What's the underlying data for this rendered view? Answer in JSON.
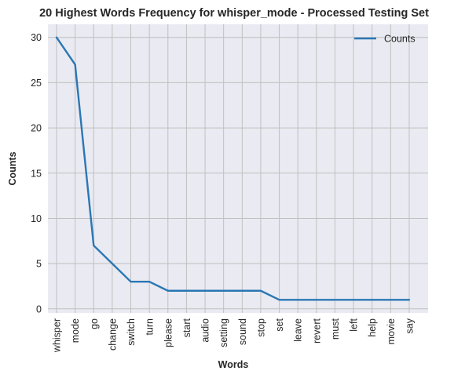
{
  "chart_data": {
    "type": "line",
    "title": "20 Highest Words Frequency for whisper_mode - Processed Testing Set",
    "xlabel": "Words",
    "ylabel": "Counts",
    "categories": [
      "whisper",
      "mode",
      "go",
      "change",
      "switch",
      "turn",
      "please",
      "start",
      "audio",
      "setting",
      "sound",
      "stop",
      "set",
      "leave",
      "revert",
      "must",
      "left",
      "help",
      "movie",
      "say"
    ],
    "series": [
      {
        "name": "Counts",
        "values": [
          30,
          27,
          7,
          5,
          3,
          3,
          2,
          2,
          2,
          2,
          2,
          2,
          1,
          1,
          1,
          1,
          1,
          1,
          1,
          1
        ]
      }
    ],
    "yticks": [
      0,
      5,
      10,
      15,
      20,
      25,
      30
    ],
    "ylim": [
      -0.45,
      31.45
    ],
    "grid": true,
    "legend_position": "top-right",
    "colors": {
      "line": "#2a77b4",
      "plot_bg": "#eaeaf2",
      "grid": "#c0c0c0"
    }
  }
}
